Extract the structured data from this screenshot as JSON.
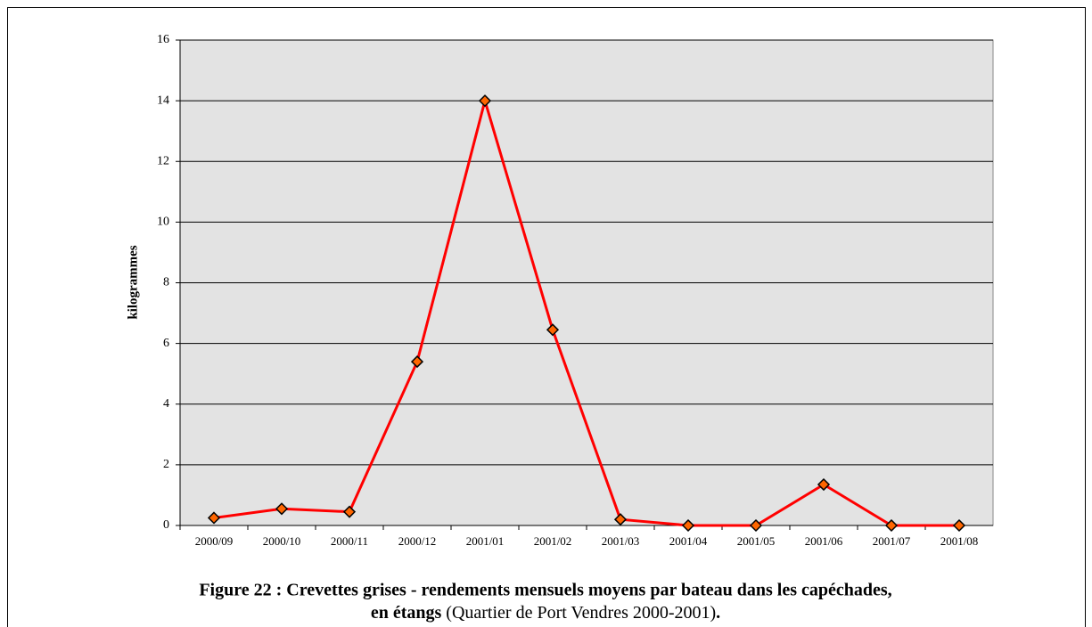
{
  "chart_data": {
    "type": "line",
    "y_label": "kilogrammes",
    "caption_line1": "Figure 22 : Crevettes grises - rendements mensuels moyens par bateau dans les capéchades,",
    "caption_line2_bold": "en étangs",
    "caption_line2_normal": "(Quartier de Port Vendres 2000-2001)",
    "caption_end": ".",
    "categories": [
      "2000/09",
      "2000/10",
      "2000/11",
      "2000/12",
      "2001/01",
      "2001/02",
      "2001/03",
      "2001/04",
      "2001/05",
      "2001/06",
      "2001/07",
      "2001/08"
    ],
    "values": [
      0.25,
      0.55,
      0.45,
      5.4,
      14,
      6.45,
      0.2,
      0,
      0,
      1.35,
      0,
      0
    ],
    "color": "#ff0000",
    "marker_color": "#ff6600",
    "ylim": [
      0,
      16
    ],
    "yticks": [
      0,
      2,
      4,
      6,
      8,
      10,
      12,
      14,
      16
    ],
    "grid": true
  }
}
